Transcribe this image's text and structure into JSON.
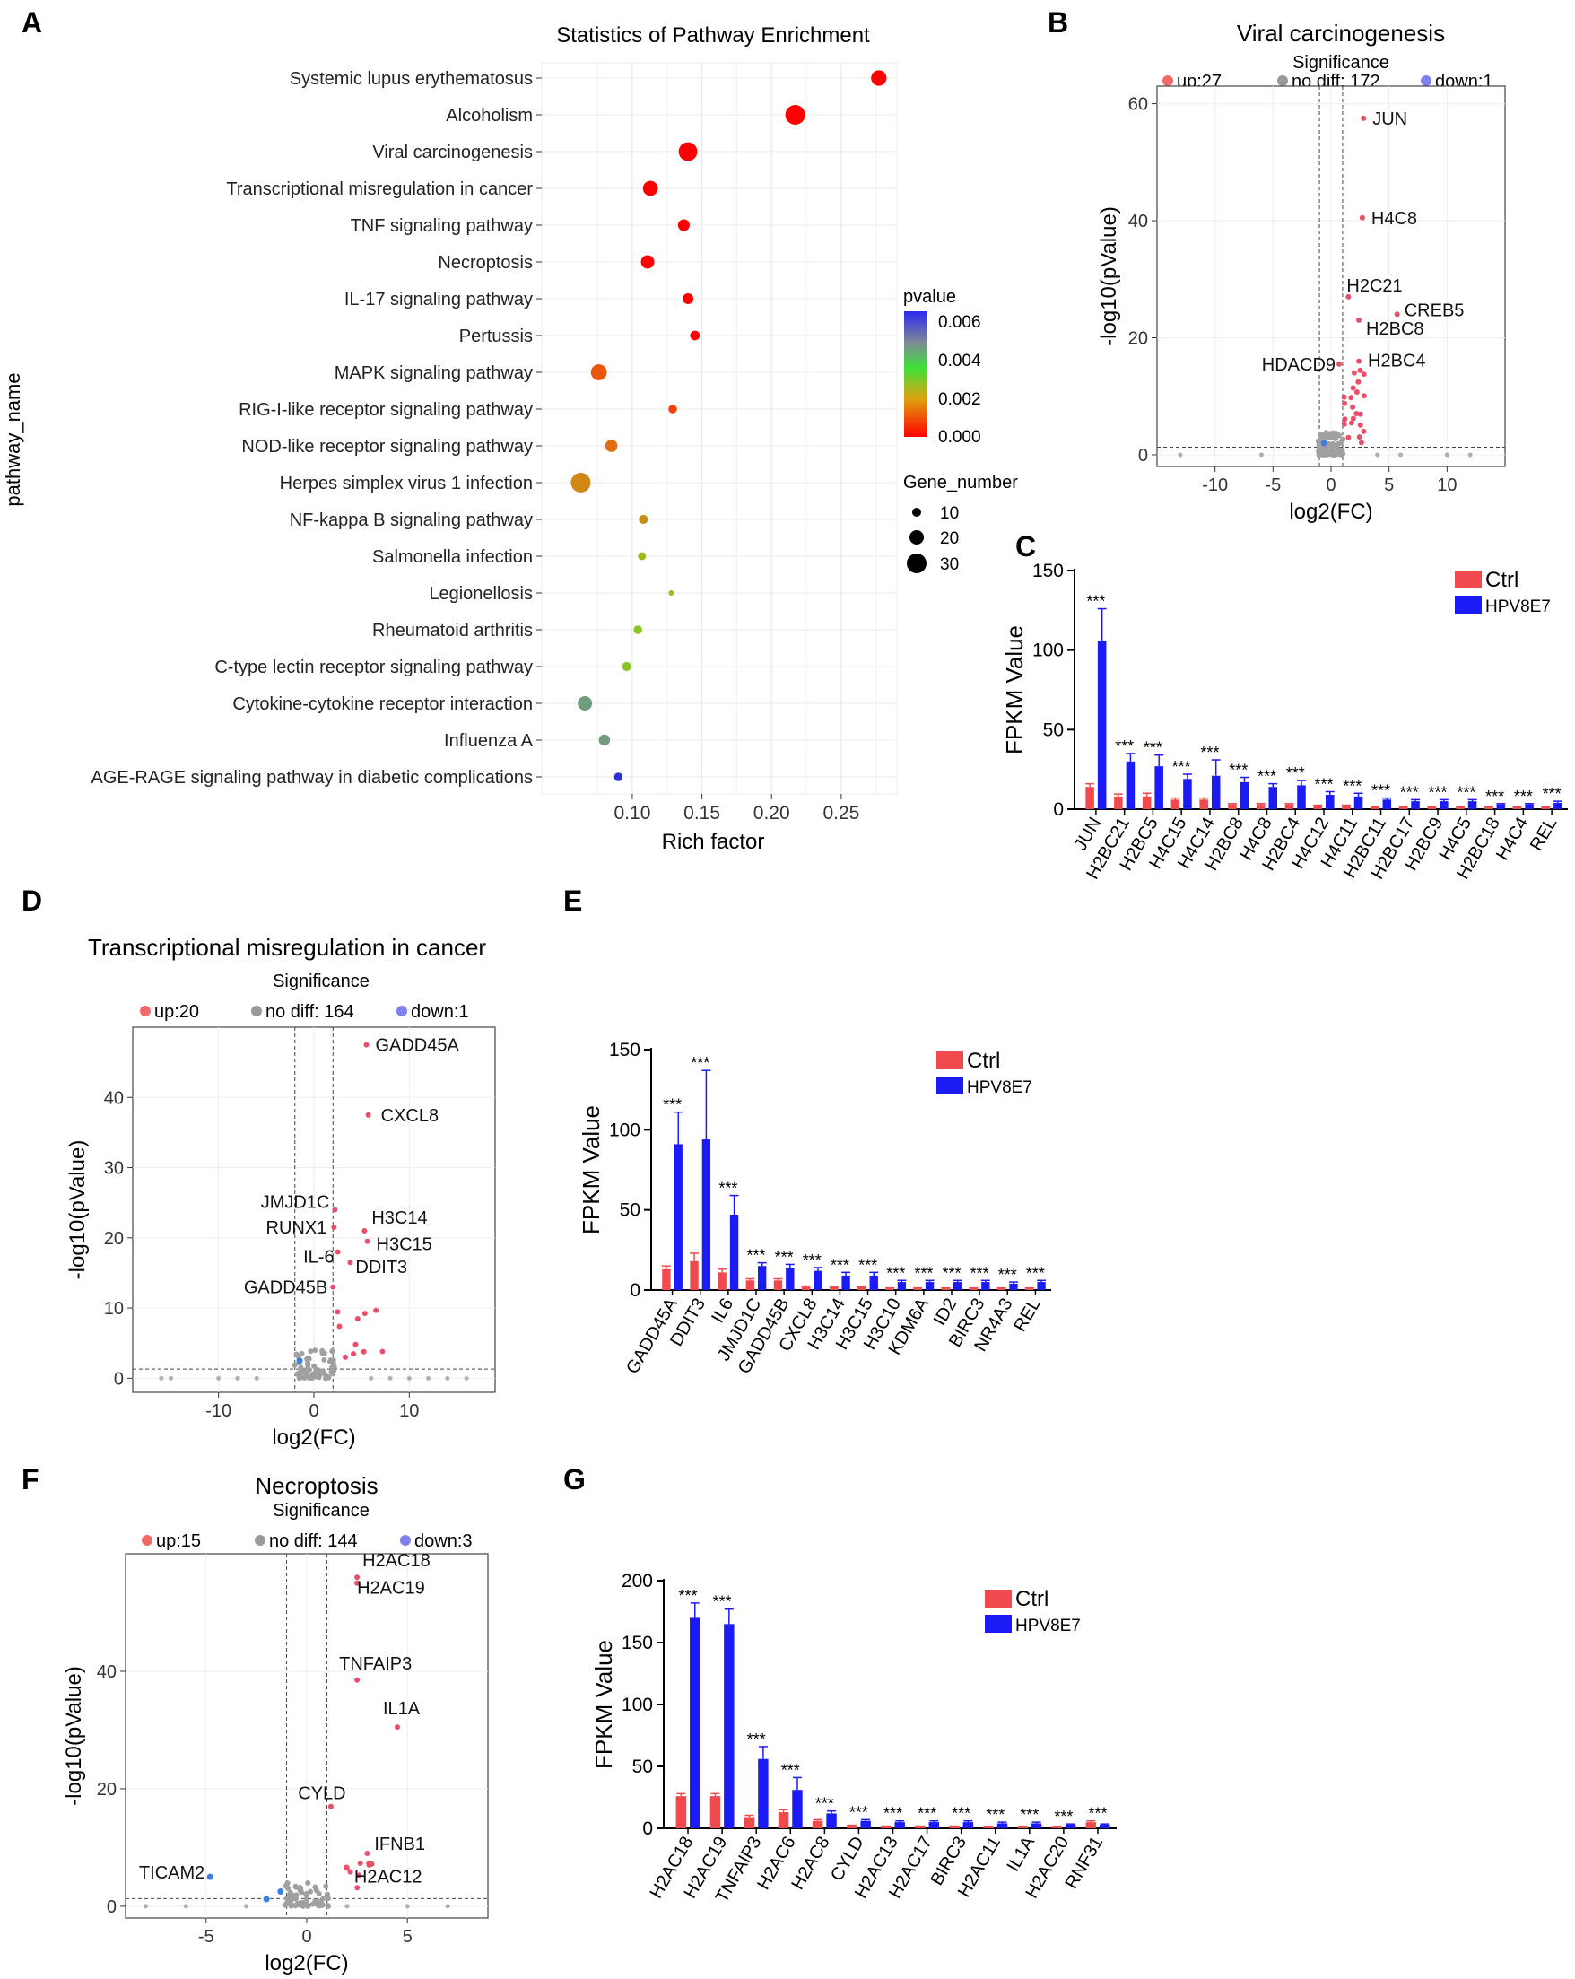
{
  "chart_data": [
    {
      "panel": "A",
      "type": "scatter",
      "title": "Statistics of Pathway Enrichment",
      "xlabel": "Rich factor",
      "ylabel": "pathway_name",
      "xlim": [
        0.035,
        0.29
      ],
      "xticks": [
        "0.10",
        "0.15",
        "0.20",
        "0.25"
      ],
      "color_legend": {
        "title": "pvalue",
        "ticks": [
          "0.006",
          "0.004",
          "0.002",
          "0.000"
        ]
      },
      "size_legend": {
        "title": "Gene_number",
        "ticks": [
          10,
          20,
          30
        ]
      },
      "points": [
        {
          "pathway": "Systemic lupus erythematosus",
          "rich_factor": 0.277,
          "gene_number": 22,
          "pvalue": 0.0
        },
        {
          "pathway": "Alcoholism",
          "rich_factor": 0.217,
          "gene_number": 30,
          "pvalue": 0.0
        },
        {
          "pathway": "Viral carcinogenesis",
          "rich_factor": 0.14,
          "gene_number": 28,
          "pvalue": 0.0
        },
        {
          "pathway": "Transcriptional misregulation in cancer",
          "rich_factor": 0.113,
          "gene_number": 21,
          "pvalue": 0.0
        },
        {
          "pathway": "TNF signaling pathway",
          "rich_factor": 0.137,
          "gene_number": 15,
          "pvalue": 0.0
        },
        {
          "pathway": "Necroptosis",
          "rich_factor": 0.111,
          "gene_number": 18,
          "pvalue": 0.0
        },
        {
          "pathway": "IL-17 signaling pathway",
          "rich_factor": 0.14,
          "gene_number": 13,
          "pvalue": 0.0
        },
        {
          "pathway": "Pertussis",
          "rich_factor": 0.145,
          "gene_number": 11,
          "pvalue": 0.0
        },
        {
          "pathway": "MAPK signaling pathway",
          "rich_factor": 0.076,
          "gene_number": 23,
          "pvalue": 0.0014
        },
        {
          "pathway": "RIG-I-like receptor signaling pathway",
          "rich_factor": 0.129,
          "gene_number": 9,
          "pvalue": 0.0011
        },
        {
          "pathway": "NOD-like receptor signaling pathway",
          "rich_factor": 0.085,
          "gene_number": 16,
          "pvalue": 0.0018
        },
        {
          "pathway": "Herpes simplex virus 1 infection",
          "rich_factor": 0.063,
          "gene_number": 30,
          "pvalue": 0.0022
        },
        {
          "pathway": "NF-kappa B signaling pathway",
          "rich_factor": 0.108,
          "gene_number": 10,
          "pvalue": 0.0023
        },
        {
          "pathway": "Salmonella infection",
          "rich_factor": 0.107,
          "gene_number": 8,
          "pvalue": 0.003
        },
        {
          "pathway": "Legionellosis",
          "rich_factor": 0.128,
          "gene_number": 3,
          "pvalue": 0.0032
        },
        {
          "pathway": "Rheumatoid arthritis",
          "rich_factor": 0.104,
          "gene_number": 9,
          "pvalue": 0.0033
        },
        {
          "pathway": "C-type lectin receptor signaling pathway",
          "rich_factor": 0.096,
          "gene_number": 10,
          "pvalue": 0.0034
        },
        {
          "pathway": "Cytokine-cytokine receptor interaction",
          "rich_factor": 0.066,
          "gene_number": 20,
          "pvalue": 0.0044
        },
        {
          "pathway": "Influenza A",
          "rich_factor": 0.08,
          "gene_number": 14,
          "pvalue": 0.0044
        },
        {
          "pathway": "AGE-RAGE signaling pathway in diabetic complications",
          "rich_factor": 0.09,
          "gene_number": 9,
          "pvalue": 0.0062
        }
      ]
    },
    {
      "panel": "B",
      "type": "scatter",
      "title": "Viral carcinogenesis",
      "xlabel": "log2(FC)",
      "ylabel": "-log10(pValue)",
      "xlim": [
        -15,
        15
      ],
      "ylim": [
        -2,
        63
      ],
      "xticks": [
        -10,
        -5,
        0,
        5,
        10
      ],
      "yticks": [
        0,
        20,
        40,
        60
      ],
      "legend_title": "Significance",
      "legend": [
        "up:27",
        "no diff: 172",
        "down:1"
      ],
      "labels": [
        {
          "text": "JUN",
          "x": 2.8,
          "y": 57.5
        },
        {
          "text": "H4C8",
          "x": 2.7,
          "y": 40.5
        },
        {
          "text": "H2C21",
          "x": 1.5,
          "y": 27
        },
        {
          "text": "CREB5",
          "x": 5.7,
          "y": 24
        },
        {
          "text": "H2BC8",
          "x": 2.4,
          "y": 23
        },
        {
          "text": "H2BC4",
          "x": 2.4,
          "y": 16
        },
        {
          "text": "HDACD9",
          "x": 0.7,
          "y": 15.5
        }
      ]
    },
    {
      "panel": "C",
      "type": "bar",
      "ylabel": "FPKM Value",
      "ylim": [
        0,
        150
      ],
      "yticks": [
        0,
        50,
        100,
        150
      ],
      "categories": [
        "JUN",
        "H2BC21",
        "H2BC5",
        "H4C15",
        "H4C14",
        "H2BC8",
        "H4C8",
        "H2BC4",
        "H4C12",
        "H4C11",
        "H2BC11",
        "H2BC17",
        "H2BC9",
        "H4C5",
        "H2BC18",
        "H4C4",
        "REL"
      ],
      "series": [
        {
          "name": "Ctrl",
          "color": "#f04a4f",
          "values": [
            14,
            8,
            8,
            6,
            6,
            3,
            3,
            3,
            2,
            2,
            1.5,
            1.5,
            1.5,
            1,
            1,
            1,
            1
          ],
          "errors": [
            2,
            1.5,
            2,
            1,
            1,
            0.5,
            0.5,
            0.5,
            0.5,
            0.5,
            0.3,
            0.3,
            0.3,
            0.3,
            0.3,
            0.3,
            0.3
          ]
        },
        {
          "name": "HPV8E7",
          "color": "#1b1bf5",
          "values": [
            106,
            30,
            27,
            19,
            21,
            17,
            14,
            15,
            9,
            8,
            6,
            5,
            5,
            5,
            3,
            3,
            4
          ],
          "errors": [
            20,
            5,
            7,
            3,
            10,
            3,
            2,
            3,
            2,
            2,
            1,
            1,
            1,
            1,
            0.5,
            0.5,
            1
          ]
        }
      ],
      "annotation": "***"
    },
    {
      "panel": "D",
      "type": "scatter",
      "title": "Transcriptional misregulation in cancer",
      "xlabel": "log2(FC)",
      "ylabel": "-log10(pValue)",
      "xlim": [
        -19,
        19
      ],
      "ylim": [
        -2,
        50
      ],
      "xticks": [
        -10,
        0,
        10
      ],
      "yticks": [
        0,
        10,
        20,
        30,
        40
      ],
      "legend_title": "Significance",
      "legend": [
        "up:20",
        "no diff: 164",
        "down:1"
      ],
      "labels": [
        {
          "text": "GADD45A",
          "x": 5.5,
          "y": 47.5
        },
        {
          "text": "CXCL8",
          "x": 5.7,
          "y": 37.5
        },
        {
          "text": "JMJD1C",
          "x": 2.2,
          "y": 24
        },
        {
          "text": "H3C14",
          "x": 5.3,
          "y": 21
        },
        {
          "text": "RUNX1",
          "x": 2.1,
          "y": 21.5
        },
        {
          "text": "H3C15",
          "x": 5.6,
          "y": 19.5
        },
        {
          "text": "IL-6",
          "x": 2.5,
          "y": 18
        },
        {
          "text": "DDIT3",
          "x": 3.8,
          "y": 16.5
        },
        {
          "text": "GADD45B",
          "x": 2.0,
          "y": 13
        }
      ]
    },
    {
      "panel": "E",
      "type": "bar",
      "ylabel": "FPKM Value",
      "ylim": [
        0,
        150
      ],
      "yticks": [
        0,
        50,
        100,
        150
      ],
      "categories": [
        "GADD45A",
        "DDIT3",
        "IL6",
        "JMJD1C",
        "GADD45B",
        "CXCL8",
        "H3C14",
        "H3C15",
        "H3C10",
        "KDM6A",
        "ID2",
        "BIRC3",
        "NR4A3",
        "REL"
      ],
      "series": [
        {
          "name": "Ctrl",
          "color": "#f04a4f",
          "values": [
            13,
            18,
            11,
            6,
            6,
            2,
            1.5,
            1.5,
            1,
            1,
            1,
            1,
            1,
            1
          ],
          "errors": [
            2,
            5,
            2,
            1,
            1,
            0.5,
            0.3,
            0.3,
            0.3,
            0.3,
            0.3,
            0.3,
            0.3,
            0.3
          ]
        },
        {
          "name": "HPV8E7",
          "color": "#1b1bf5",
          "values": [
            91,
            94,
            47,
            15,
            14,
            12,
            9,
            9,
            5,
            5,
            5,
            5,
            4,
            5
          ],
          "errors": [
            20,
            43,
            12,
            2,
            2,
            2,
            2,
            2,
            1,
            1,
            1,
            1,
            1,
            1
          ]
        }
      ],
      "annotation": "***"
    },
    {
      "panel": "F",
      "type": "scatter",
      "title": "Necroptosis",
      "xlabel": "log2(FC)",
      "ylabel": "-log10(pValue)",
      "xlim": [
        -9,
        9
      ],
      "ylim": [
        -2,
        60
      ],
      "xticks": [
        -5,
        0,
        5
      ],
      "yticks": [
        0,
        20,
        40
      ],
      "legend_title": "Significance",
      "legend": [
        "up:15",
        "no diff: 144",
        "down:3"
      ],
      "labels": [
        {
          "text": "H2AC18",
          "x": 2.5,
          "y": 56
        },
        {
          "text": "H2AC19",
          "x": 2.5,
          "y": 55
        },
        {
          "text": "TNFAIP3",
          "x": 2.5,
          "y": 38.5
        },
        {
          "text": "IL1A",
          "x": 4.5,
          "y": 30.5
        },
        {
          "text": "CYLD",
          "x": 1.2,
          "y": 17
        },
        {
          "text": "IFNB1",
          "x": 3.0,
          "y": 9
        },
        {
          "text": "H2AC12",
          "x": 2.0,
          "y": 6.5
        },
        {
          "text": "TICAM2",
          "x": -4.8,
          "y": 5
        }
      ]
    },
    {
      "panel": "G",
      "type": "bar",
      "ylabel": "FPKM Value",
      "ylim": [
        0,
        200
      ],
      "yticks": [
        0,
        50,
        100,
        150,
        200
      ],
      "categories": [
        "H2AC18",
        "H2AC19",
        "TNFAIP3",
        "H2AC6",
        "H2AC8",
        "CYLD",
        "H2AC13",
        "H2AC17",
        "BIRC3",
        "H2AC11",
        "IL1A",
        "H2AC20",
        "RNF31"
      ],
      "series": [
        {
          "name": "Ctrl",
          "color": "#f04a4f",
          "values": [
            26,
            26,
            9,
            13,
            6,
            2,
            1.5,
            1.5,
            1.5,
            1,
            1,
            1,
            5
          ],
          "errors": [
            2,
            2,
            1.5,
            2,
            1,
            0.5,
            0.3,
            0.3,
            0.3,
            0.3,
            0.3,
            0.3,
            1
          ]
        },
        {
          "name": "HPV8E7",
          "color": "#1b1bf5",
          "values": [
            170,
            165,
            56,
            31,
            12,
            6,
            5,
            5,
            5,
            4,
            4,
            3,
            3
          ],
          "errors": [
            12,
            12,
            10,
            10,
            2,
            1,
            1,
            1,
            1,
            1,
            1,
            0.5,
            0.5
          ]
        }
      ],
      "annotation": "***"
    }
  ],
  "panel_letters": [
    "A",
    "B",
    "C",
    "D",
    "E",
    "F",
    "G"
  ]
}
